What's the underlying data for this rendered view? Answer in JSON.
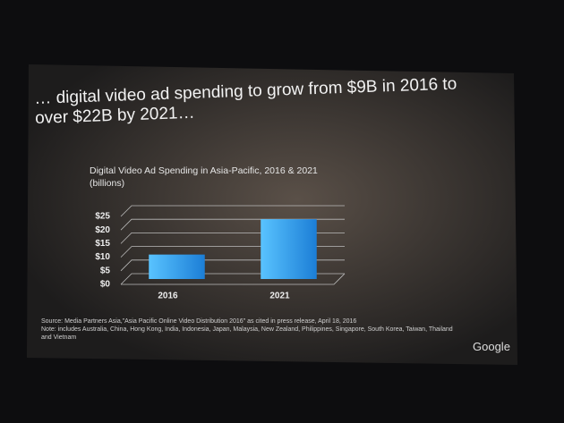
{
  "headline": "… digital video ad spending to grow from $9B in 2016 to over $22B by 2021…",
  "chart_data": {
    "type": "bar",
    "title": "Digital Video Ad Spending in Asia-Pacific, 2016 & 2021",
    "subtitle": "(billions)",
    "categories": [
      "2016",
      "2021"
    ],
    "values": [
      9,
      22
    ],
    "color": "#2f9be8",
    "ylim": [
      0,
      25
    ],
    "yticks": [
      {
        "value": 0,
        "label": "$0"
      },
      {
        "value": 5,
        "label": "$5"
      },
      {
        "value": 10,
        "label": "$10"
      },
      {
        "value": 15,
        "label": "$15"
      },
      {
        "value": 20,
        "label": "$20"
      },
      {
        "value": 25,
        "label": "$25"
      }
    ],
    "grid": true
  },
  "source": "Source: Media Partners Asia,\"Asia Pacific Online Video Distribution 2016\" as cited in press release, April 18, 2016",
  "note": "Note: includes Australia, China, Hong Kong, India, Indonesia, Japan, Malaysia, New Zealand, Philippines, Singapore, South Korea, Taiwan, Thailand and Vietnam",
  "logo": "Google"
}
